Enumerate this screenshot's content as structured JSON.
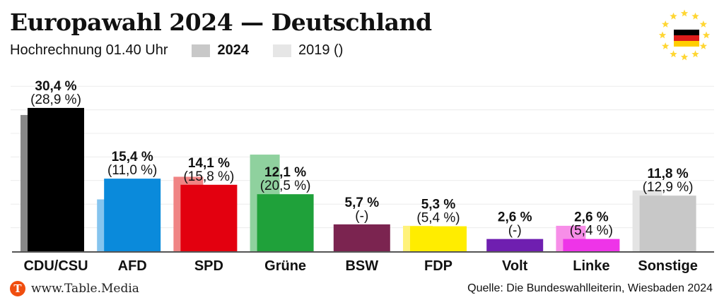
{
  "header": {
    "title": "Europawahl 2024 — Deutschland",
    "subtitle": "Hochrechnung 01.40 Uhr",
    "legend_2024": "2024",
    "legend_2019": "2019 ()"
  },
  "footer": {
    "site": "www.Table.Media",
    "logo_letter": "T",
    "source": "Quelle: Die Bundeswahlleiterin, Wiesbaden 2024"
  },
  "chart_data": {
    "type": "bar",
    "title": "Europawahl 2024 — Deutschland",
    "ylim": [
      0,
      35
    ],
    "grid": true,
    "categories": [
      "CDU/CSU",
      "AFD",
      "SPD",
      "Grüne",
      "BSW",
      "FDP",
      "Volt",
      "Linke",
      "Sonstige"
    ],
    "series": [
      {
        "name": "2024",
        "values": [
          30.4,
          15.4,
          14.1,
          12.1,
          5.7,
          5.3,
          2.6,
          2.6,
          11.8
        ],
        "labels": [
          "30,4 %",
          "15,4 %",
          "14,1 %",
          "12,1 %",
          "5,7 %",
          "5,3 %",
          "2,6 %",
          "2,6 %",
          "11,8 %"
        ],
        "colors": [
          "#000000",
          "#0a8adb",
          "#e3000f",
          "#1fa13a",
          "#7b2450",
          "#ffed00",
          "#6f1fb0",
          "#ee34e8",
          "#c8c8c8"
        ]
      },
      {
        "name": "2019",
        "values": [
          28.9,
          11.0,
          15.8,
          20.5,
          null,
          5.4,
          null,
          5.4,
          12.9
        ],
        "labels": [
          "(28,9 %)",
          "(11,0 %)",
          "(15,8 %)",
          "(20,5 %)",
          "(-)",
          "(5,4 %)",
          "(-)",
          "(5,4 %)",
          "(12,9 %)"
        ],
        "colors": [
          "#888888",
          "#85c4ee",
          "#f08484",
          "#8fd19e",
          "#b07a95",
          "#fff27a",
          "#b48fd6",
          "#f78ee8",
          "#e4e4e4"
        ]
      }
    ]
  },
  "colors": {
    "legend_2024": "#c8c8c8",
    "legend_2019": "#e6e6e6",
    "eu_star": "#ffd633"
  }
}
